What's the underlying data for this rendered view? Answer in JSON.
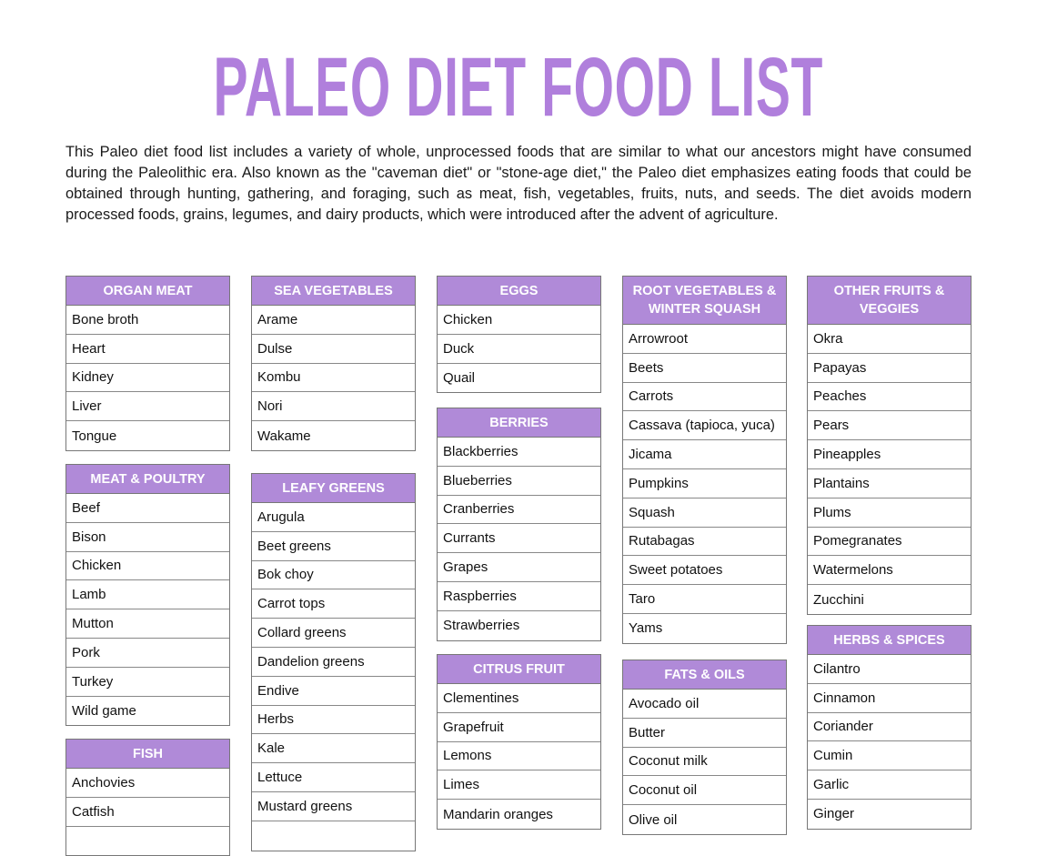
{
  "title": "PALEO DIET FOOD LIST",
  "intro": "This Paleo diet food list includes a variety of whole, unprocessed foods that are similar to what our ancestors might have consumed during the Paleolithic era. Also known as the \"caveman diet\" or \"stone-age diet,\" the Paleo diet emphasizes eating foods that could be obtained through hunting, gathering, and foraging, such as meat, fish, vegetables, fruits, nuts, and seeds. The diet avoids modern processed foods, grains, legumes, and dairy products, which were introduced after the advent of agriculture.",
  "accent_color": "#b08ad8",
  "categories": [
    {
      "title": "ORGAN MEAT",
      "items": [
        "Bone broth",
        "Heart",
        "Kidney",
        "Liver",
        "Tongue"
      ]
    },
    {
      "title": "MEAT & POULTRY",
      "items": [
        "Beef",
        "Bison",
        "Chicken",
        "Lamb",
        "Mutton",
        "Pork",
        "Turkey",
        "Wild game"
      ]
    },
    {
      "title": "FISH",
      "items": [
        "Anchovies",
        "Catfish",
        ""
      ]
    },
    {
      "title": "SEA VEGETABLES",
      "items": [
        "Arame",
        "Dulse",
        "Kombu",
        "Nori",
        "Wakame"
      ]
    },
    {
      "title": "LEAFY GREENS",
      "items": [
        "Arugula",
        "Beet greens",
        "Bok choy",
        "Carrot tops",
        "Collard greens",
        "Dandelion greens",
        "Endive",
        "Herbs",
        "Kale",
        "Lettuce",
        "Mustard greens",
        ""
      ]
    },
    {
      "title": "EGGS",
      "items": [
        "Chicken",
        "Duck",
        "Quail"
      ]
    },
    {
      "title": "BERRIES",
      "items": [
        "Blackberries",
        "Blueberries",
        "Cranberries",
        "Currants",
        "Grapes",
        "Raspberries",
        "Strawberries"
      ]
    },
    {
      "title": "CITRUS FRUIT",
      "items": [
        "Clementines",
        "Grapefruit",
        "Lemons",
        "Limes",
        "Mandarin oranges"
      ]
    },
    {
      "title": "ROOT VEGETABLES & WINTER SQUASH",
      "items": [
        "Arrowroot",
        "Beets",
        "Carrots",
        "Cassava (tapioca, yuca)",
        "Jicama",
        "Pumpkins",
        "Squash",
        "Rutabagas",
        "Sweet potatoes",
        "Taro",
        "Yams"
      ]
    },
    {
      "title": "FATS & OILS",
      "items": [
        "Avocado oil",
        "Butter",
        "Coconut milk",
        "Coconut oil",
        "Olive oil"
      ]
    },
    {
      "title": "OTHER FRUITS & VEGGIES",
      "items": [
        "Okra",
        "Papayas",
        "Peaches",
        "Pears",
        "Pineapples",
        "Plantains",
        "Plums",
        "Pomegranates",
        "Watermelons",
        "Zucchini"
      ]
    },
    {
      "title": "HERBS & SPICES",
      "items": [
        "Cilantro",
        "Cinnamon",
        "Coriander",
        "Cumin",
        "Garlic",
        "Ginger"
      ]
    }
  ]
}
